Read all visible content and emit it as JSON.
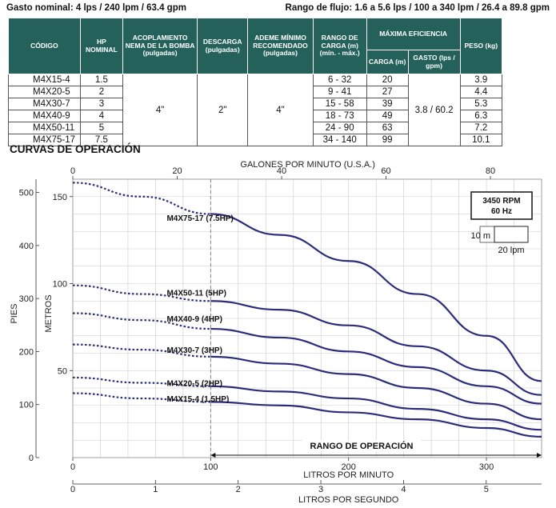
{
  "header": {
    "nominal_flow": "Gasto nominal: 4 lps / 240 lpm / 63.4 gpm",
    "flow_range": "Rango de flujo: 1.6 a 5.6 lps  / 100 a 340 lpm / 26.4 a 89.8 gpm"
  },
  "table": {
    "headers": {
      "codigo": "CÓDIGO",
      "hp": "HP NOMINAL",
      "acoplamiento": "ACOPLAMIENTO NEMA DE LA BOMBA (pulgadas)",
      "descarga": "DESCARGA (pulgadas)",
      "ademe": "ADEME MÍNIMO RECOMENDADO (pulgadas)",
      "rango": "RANGO DE CARGA (m) (mín. - máx.)",
      "eficiencia": "MÁXIMA EFICIENCIA",
      "carga": "CARGA (m)",
      "gasto": "GASTO (lps / gpm)",
      "peso": "PESO (kg)"
    },
    "shared": {
      "acoplamiento": "4\"",
      "descarga": "2\"",
      "ademe": "4\"",
      "gasto": "3.8 / 60.2"
    },
    "rows": [
      {
        "codigo": "M4X15-4",
        "hp": "1.5",
        "rango": "6 - 32",
        "carga": "20",
        "peso": "3.9"
      },
      {
        "codigo": "M4X20-5",
        "hp": "2",
        "rango": "9 - 41",
        "carga": "27",
        "peso": "4.4"
      },
      {
        "codigo": "M4X30-7",
        "hp": "3",
        "rango": "15 - 58",
        "carga": "39",
        "peso": "5.3"
      },
      {
        "codigo": "M4X40-9",
        "hp": "4",
        "rango": "18 - 73",
        "carga": "49",
        "peso": "6.3"
      },
      {
        "codigo": "M4X50-11",
        "hp": "5",
        "rango": "24 - 90",
        "carga": "63",
        "peso": "7.2"
      },
      {
        "codigo": "M4X75-17",
        "hp": "7.5",
        "rango": "34 - 140",
        "carga": "99",
        "peso": "10.1"
      }
    ]
  },
  "section_title": "CURVAS DE OPERACIÓN",
  "chart_data": {
    "type": "line",
    "title": "CURVAS DE OPERACIÓN",
    "x_lpm": {
      "label": "LITROS POR MINUTO",
      "range": [
        0,
        340
      ],
      "ticks": [
        0,
        100,
        200,
        300
      ]
    },
    "x_gpm": {
      "label": "GALONES POR MINUTO (U.S.A.)",
      "range": [
        0,
        89.8
      ],
      "ticks": [
        0,
        20,
        40,
        60,
        80
      ]
    },
    "x_lps": {
      "label": "LITROS POR SEGUNDO",
      "range": [
        0,
        5.67
      ],
      "ticks": [
        0,
        1,
        2,
        3,
        4,
        5
      ]
    },
    "y_m": {
      "label": "METROS",
      "range": [
        0,
        160
      ],
      "ticks": [
        50,
        100,
        150
      ]
    },
    "y_ft": {
      "label": "PIES",
      "range": [
        0,
        525
      ],
      "ticks": [
        0,
        100,
        200,
        300,
        400,
        500
      ]
    },
    "operating_range": {
      "label": "RANGO DE OPERACIÓN",
      "from_lpm": 100,
      "to_lpm": 340
    },
    "boxes": {
      "rpm": "3450 RPM",
      "hz": "60 Hz",
      "scale_y": "10 m",
      "scale_x": "20 lpm"
    },
    "series": [
      {
        "name": "M4X75-17 (7.5HP)",
        "label_lpm": 67,
        "label_m": 138,
        "points": [
          [
            0,
            158
          ],
          [
            50,
            150
          ],
          [
            100,
            140
          ],
          [
            150,
            128
          ],
          [
            200,
            113
          ],
          [
            250,
            94
          ],
          [
            300,
            70
          ],
          [
            340,
            44
          ]
        ]
      },
      {
        "name": "M4X50-11 (5HP)",
        "label_lpm": 67,
        "label_m": 95,
        "points": [
          [
            0,
            99
          ],
          [
            50,
            94
          ],
          [
            100,
            90
          ],
          [
            150,
            85
          ],
          [
            200,
            76
          ],
          [
            250,
            64
          ],
          [
            300,
            50
          ],
          [
            340,
            36
          ]
        ]
      },
      {
        "name": "M4X40-9 (4HP)",
        "label_lpm": 67,
        "label_m": 80,
        "points": [
          [
            0,
            83
          ],
          [
            50,
            79
          ],
          [
            100,
            74
          ],
          [
            150,
            69
          ],
          [
            200,
            61
          ],
          [
            250,
            52
          ],
          [
            300,
            41
          ],
          [
            340,
            31
          ]
        ]
      },
      {
        "name": "M4X30-7 (3HP)",
        "label_lpm": 67,
        "label_m": 62,
        "points": [
          [
            0,
            65
          ],
          [
            50,
            62
          ],
          [
            100,
            58
          ],
          [
            150,
            54
          ],
          [
            200,
            48
          ],
          [
            250,
            40
          ],
          [
            300,
            31
          ],
          [
            340,
            22
          ]
        ]
      },
      {
        "name": "M4X20-5 (2HP)",
        "label_lpm": 67,
        "label_m": 43,
        "points": [
          [
            0,
            46
          ],
          [
            50,
            43
          ],
          [
            100,
            41
          ],
          [
            150,
            38
          ],
          [
            200,
            34
          ],
          [
            250,
            28
          ],
          [
            300,
            22
          ],
          [
            340,
            16
          ]
        ]
      },
      {
        "name": "M4X15-4 (1.5HP)",
        "label_lpm": 67,
        "label_m": 34,
        "points": [
          [
            0,
            37
          ],
          [
            50,
            34
          ],
          [
            100,
            32
          ],
          [
            150,
            30
          ],
          [
            200,
            26
          ],
          [
            250,
            22
          ],
          [
            300,
            17
          ],
          [
            340,
            12
          ]
        ]
      }
    ],
    "colors": {
      "curve": "#2b2d7a",
      "grid": "#c9c9c9",
      "header": "#23615a"
    }
  }
}
